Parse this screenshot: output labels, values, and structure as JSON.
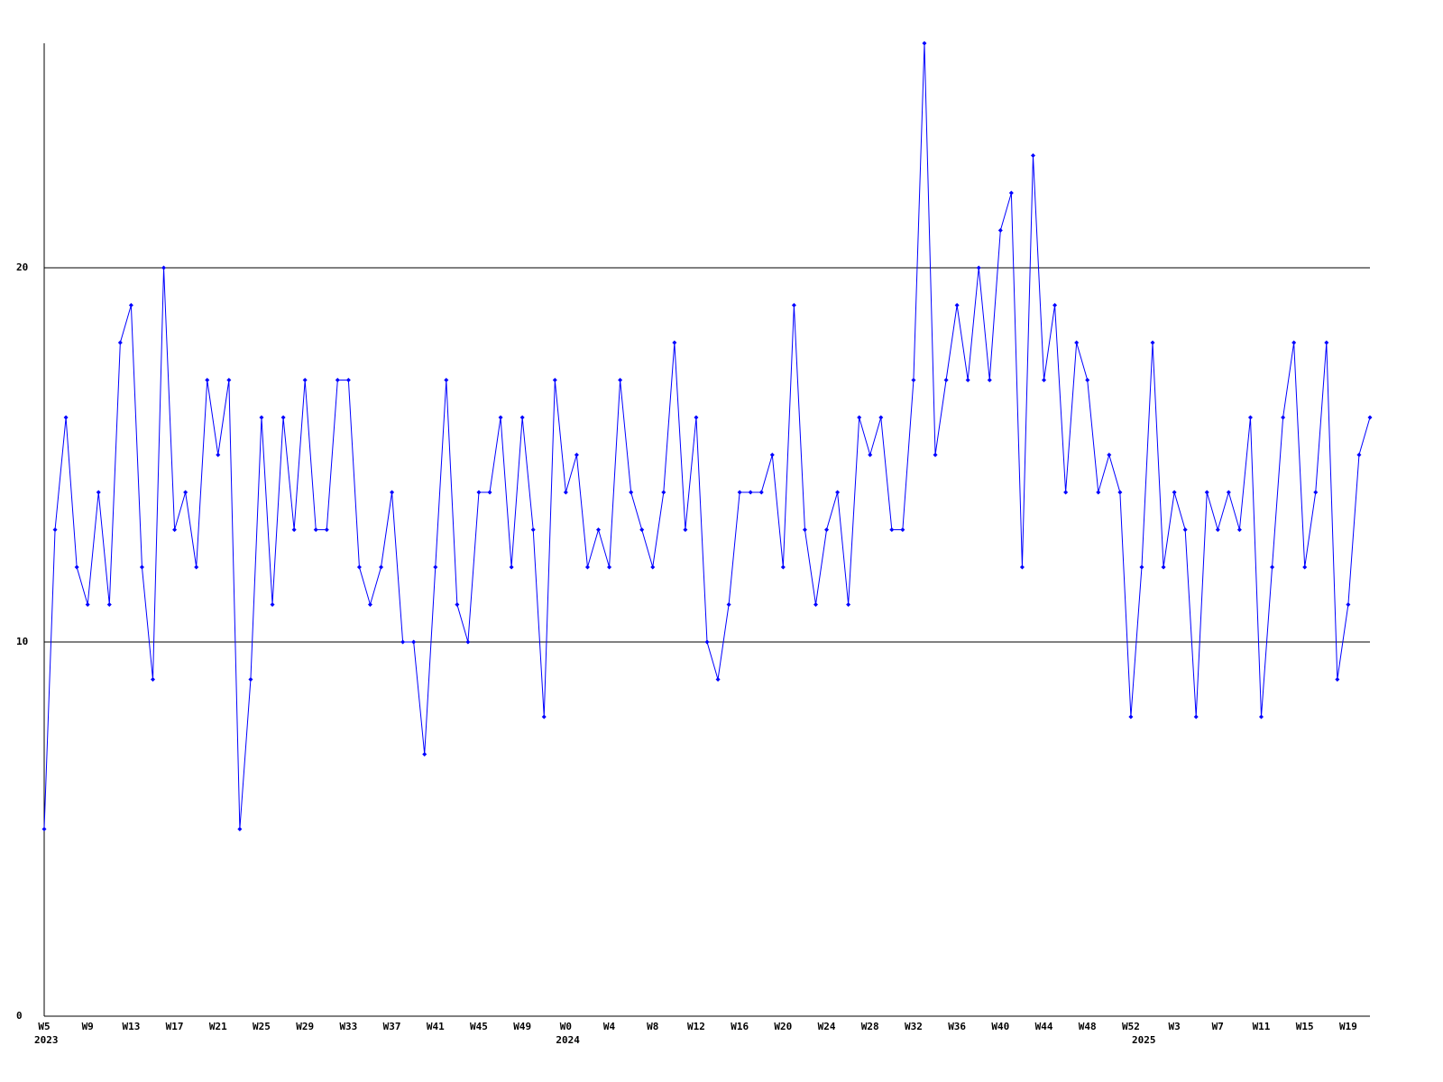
{
  "chart_data": {
    "type": "line",
    "categories": [
      "W5",
      null,
      null,
      null,
      "W9",
      null,
      null,
      null,
      "W13",
      null,
      null,
      null,
      "W17",
      null,
      null,
      null,
      "W21",
      null,
      null,
      null,
      "W25",
      null,
      null,
      null,
      "W29",
      null,
      null,
      null,
      "W33",
      null,
      null,
      null,
      "W37",
      null,
      null,
      null,
      "W41",
      null,
      null,
      null,
      "W45",
      null,
      null,
      null,
      "W49",
      null,
      null,
      null,
      "W0",
      null,
      null,
      null,
      "W4",
      null,
      null,
      null,
      "W8",
      null,
      null,
      null,
      "W12",
      null,
      null,
      null,
      "W16",
      null,
      null,
      null,
      "W20",
      null,
      null,
      null,
      "W24",
      null,
      null,
      null,
      "W28",
      null,
      null,
      null,
      "W32",
      null,
      null,
      null,
      "W36",
      null,
      null,
      null,
      "W40",
      null,
      null,
      null,
      "W44",
      null,
      null,
      null,
      "W48",
      null,
      null,
      null,
      "W52",
      null,
      null,
      null,
      "W3",
      null,
      null,
      null,
      "W7",
      null,
      null,
      null,
      "W11",
      null,
      null,
      null,
      "W15",
      null,
      null,
      null,
      "W19",
      null,
      null
    ],
    "year_labels": [
      "2023",
      null,
      null,
      null,
      null,
      null,
      null,
      null,
      null,
      null,
      null,
      null,
      null,
      null,
      null,
      null,
      null,
      null,
      null,
      null,
      null,
      null,
      null,
      null,
      null,
      null,
      null,
      null,
      null,
      null,
      null,
      null,
      null,
      null,
      null,
      null,
      null,
      null,
      null,
      null,
      null,
      null,
      null,
      null,
      null,
      null,
      null,
      null,
      "2024",
      null,
      null,
      null,
      null,
      null,
      null,
      null,
      null,
      null,
      null,
      null,
      null,
      null,
      null,
      null,
      null,
      null,
      null,
      null,
      null,
      null,
      null,
      null,
      null,
      null,
      null,
      null,
      null,
      null,
      null,
      null,
      null,
      null,
      null,
      null,
      null,
      null,
      null,
      null,
      null,
      null,
      null,
      null,
      null,
      null,
      null,
      null,
      null,
      null,
      null,
      null,
      null,
      "2025",
      null,
      null,
      null,
      null,
      null,
      null,
      null,
      null,
      null,
      null,
      null,
      null,
      null,
      null,
      null,
      null,
      null,
      null,
      null,
      null,
      null
    ],
    "series": [
      {
        "color": "#0000ff",
        "values": [
          5,
          13,
          16,
          12,
          11,
          14,
          11,
          18,
          19,
          12,
          9,
          20,
          13,
          14,
          12,
          17,
          15,
          17,
          5,
          9,
          16,
          11,
          16,
          13,
          17,
          13,
          13,
          17,
          17,
          12,
          11,
          12,
          14,
          10,
          10,
          7,
          12,
          17,
          11,
          10,
          14,
          14,
          16,
          12,
          16,
          13,
          8,
          17,
          14,
          15,
          12,
          13,
          12,
          17,
          14,
          13,
          12,
          14,
          18,
          13,
          16,
          10,
          9,
          11,
          14,
          14,
          14,
          15,
          12,
          19,
          13,
          11,
          13,
          14,
          11,
          16,
          15,
          16,
          13,
          13,
          17,
          26,
          15,
          17,
          19,
          17,
          20,
          17,
          21,
          22,
          12,
          23,
          17,
          19,
          14,
          18,
          17,
          14,
          15,
          14,
          8,
          12,
          18,
          12,
          14,
          13,
          8,
          14,
          13,
          14,
          13,
          16,
          8,
          12,
          16,
          18,
          12,
          14,
          18,
          9,
          11,
          15,
          16
        ]
      }
    ],
    "ylim": [
      0,
      26
    ],
    "yticks": [
      0,
      10,
      20
    ],
    "grid": true
  }
}
